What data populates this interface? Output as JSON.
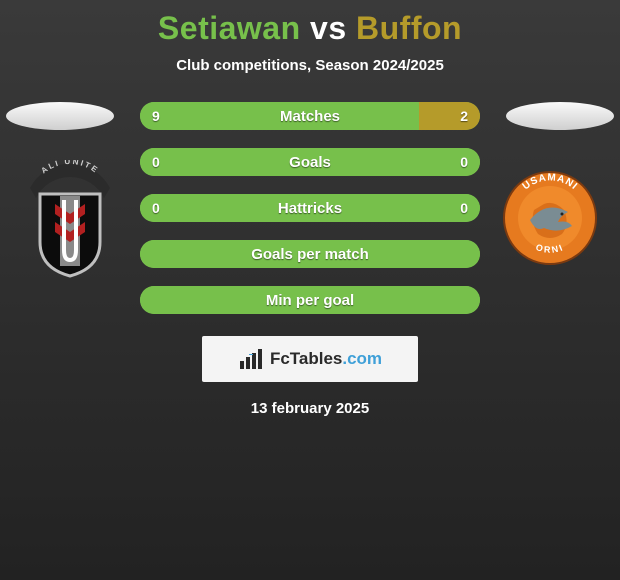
{
  "title_parts": {
    "left": "Setiawan",
    "vs": "vs",
    "right": "Buffon"
  },
  "title_colors": {
    "left": "#77c04b",
    "vs": "#ffffff",
    "right": "#b59b2a"
  },
  "subtitle": "Club competitions, Season 2024/2025",
  "date": "13 february 2025",
  "brand": {
    "fc": "Fc",
    "tables": "Tables",
    "dotcom": ".com",
    "fc_color": "#2a2a2a",
    "tables_color": "#2a2a2a",
    "dotcom_color": "#3fa0d8",
    "box_bg": "#f4f4f4"
  },
  "bar_colors": {
    "left": "#77c04b",
    "right": "#b59b2a",
    "track": "#77c04b"
  },
  "bars": [
    {
      "label": "Matches",
      "left_val": "9",
      "right_val": "2",
      "left_pct": 82,
      "right_pct": 18,
      "show_right_fill": true
    },
    {
      "label": "Goals",
      "left_val": "0",
      "right_val": "0",
      "left_pct": 100,
      "right_pct": 0,
      "show_right_fill": false
    },
    {
      "label": "Hattricks",
      "left_val": "0",
      "right_val": "0",
      "left_pct": 100,
      "right_pct": 0,
      "show_right_fill": false
    },
    {
      "label": "Goals per match",
      "left_val": "",
      "right_val": "",
      "left_pct": 100,
      "right_pct": 0,
      "show_right_fill": false
    },
    {
      "label": "Min per goal",
      "left_val": "",
      "right_val": "",
      "left_pct": 100,
      "right_pct": 0,
      "show_right_fill": false
    }
  ],
  "crest_left": {
    "shield_fill": "#0c0c0c",
    "shield_stroke": "#bfbfbf",
    "banner_text": "ALI UNITE",
    "banner_bg": "#2b2b2b",
    "banner_text_color": "#cfcfcf",
    "inner_stripe_bg": "#8a8a8a",
    "accent_red": "#b22020"
  },
  "crest_right": {
    "ring_fill": "#e67a1f",
    "ring_text_top": "USAMANI",
    "ring_text_bottom": "ORNI",
    "ring_text_color": "#ffffff",
    "center_bg": "#f08a2b",
    "fish_color": "#7a8c93",
    "accent_stroke": "#7b3a10"
  }
}
